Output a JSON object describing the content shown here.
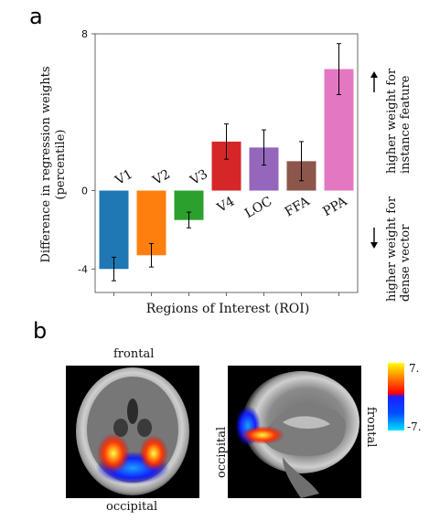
{
  "panels": {
    "a_label": "a",
    "b_label": "b"
  },
  "chart_data": {
    "type": "bar",
    "categories": [
      "V1",
      "V2",
      "V3",
      "V4",
      "LOC",
      "FFA",
      "PPA"
    ],
    "values": [
      -4.0,
      -3.3,
      -1.5,
      2.5,
      2.2,
      1.5,
      6.2
    ],
    "errors": [
      0.6,
      0.6,
      0.4,
      0.9,
      0.9,
      1.0,
      1.3
    ],
    "colors": [
      "#1f77b4",
      "#ff7f0e",
      "#2ca02c",
      "#d62728",
      "#9467bd",
      "#8c564b",
      "#e377c2"
    ],
    "xlabel": "Regions of Interest (ROI)",
    "ylabel_line1": "Difference in regression weights",
    "ylabel_line2": "(percentile)",
    "ylim": [
      -5.2,
      8
    ],
    "yticks": [
      "8",
      "0",
      "-4"
    ],
    "ytick_values": [
      8,
      0,
      -4
    ],
    "grid": false
  },
  "annotations": {
    "up_line1": "higher weight for",
    "up_line2": "instance feature",
    "down_line1": "higher weight for",
    "down_line2": "dense vector",
    "up_arrow": "arrow-up",
    "down_arrow": "arrow-down"
  },
  "brain_maps": {
    "axial_top_label": "frontal",
    "axial_bottom_label": "occipital",
    "sagittal_left_label": "occipital",
    "sagittal_right_label": "frontal",
    "colorbar_max": "7.",
    "colorbar_min": "-7."
  }
}
